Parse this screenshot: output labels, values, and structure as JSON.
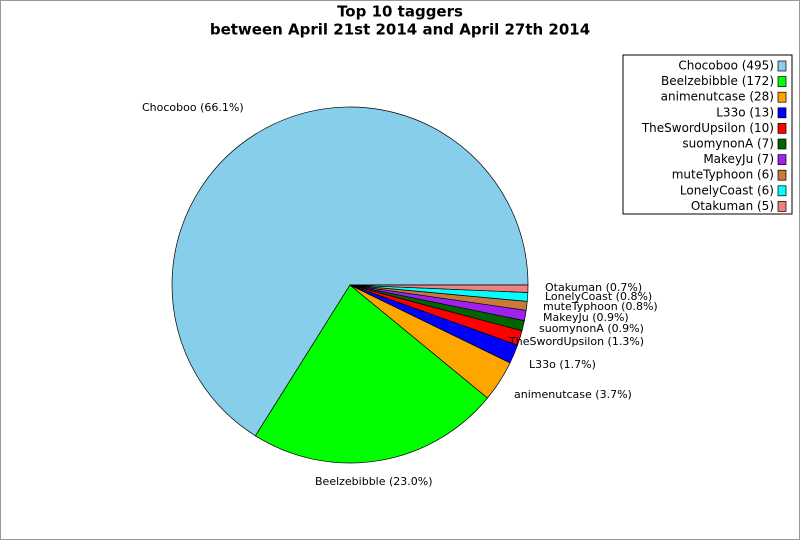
{
  "chart_data": {
    "type": "pie",
    "title": "Top 10 taggers",
    "subtitle": "between April 21st 2014 and April 27th 2014",
    "categories": [
      "Chocoboo",
      "Beelzebibble",
      "animenutcase",
      "L33o",
      "TheSwordUpsilon",
      "suomynonA",
      "MakeyJu",
      "muteTyphoon",
      "LonelyCoast",
      "Otakuman"
    ],
    "values": [
      495,
      172,
      28,
      13,
      10,
      7,
      7,
      6,
      6,
      5
    ],
    "value_labels": [
      "Chocoboo (66.1%)",
      "Beelzebibble (23.0%)",
      "animenutcase (3.7%)",
      "L33o (1.7%)",
      "TheSwordUpsilon (1.3%)",
      "suomynonA (0.9%)",
      "MakeyJu (0.9%)",
      "muteTyphoon (0.8%)",
      "LonelyCoast (0.8%)",
      "Otakuman (0.7%)"
    ],
    "legend_labels": [
      "Chocoboo (495)",
      "Beelzebibble (172)",
      "animenutcase (28)",
      "L33o (13)",
      "TheSwordUpsilon (10)",
      "suomynonA (7)",
      "MakeyJu (7)",
      "muteTyphoon (6)",
      "LonelyCoast (6)",
      "Otakuman (5)"
    ],
    "colors": [
      "#87ceeb",
      "#00ff00",
      "#ffa500",
      "#0000ff",
      "#ff0000",
      "#006400",
      "#a020f0",
      "#c87a3a",
      "#00ffff",
      "#f08080"
    ],
    "legend": "top-right"
  }
}
